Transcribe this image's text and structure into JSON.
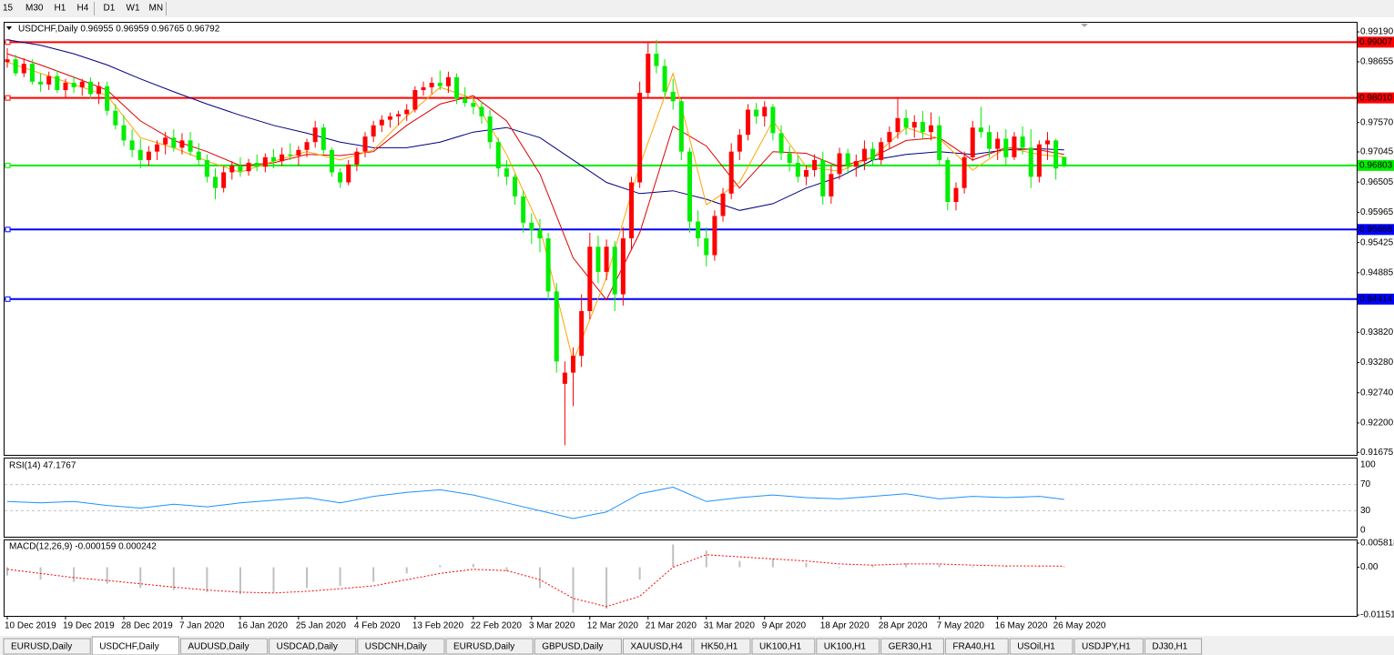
{
  "toolbar": [
    "15",
    "M30",
    "H1",
    "H4",
    "D1",
    "W1",
    "MN"
  ],
  "chart_data": {
    "type": "candlestick",
    "title": "USDCHF,Daily 0.96955 0.96959 0.96765 0.96792",
    "up_color": "#ff0000",
    "down_color": "#00ee00",
    "candles": [
      [
        0.9865,
        0.989,
        0.9855,
        0.987
      ],
      [
        0.987,
        0.9878,
        0.984,
        0.9845
      ],
      [
        0.9845,
        0.9872,
        0.9838,
        0.9862
      ],
      [
        0.9862,
        0.987,
        0.9825,
        0.983
      ],
      [
        0.983,
        0.9845,
        0.9812,
        0.9825
      ],
      [
        0.9825,
        0.9848,
        0.9815,
        0.984
      ],
      [
        0.984,
        0.985,
        0.981,
        0.9815
      ],
      [
        0.9815,
        0.9835,
        0.98,
        0.9828
      ],
      [
        0.9828,
        0.984,
        0.981,
        0.982
      ],
      [
        0.982,
        0.9835,
        0.9805,
        0.983
      ],
      [
        0.983,
        0.9838,
        0.98,
        0.9808
      ],
      [
        0.9808,
        0.983,
        0.979,
        0.9822
      ],
      [
        0.9822,
        0.983,
        0.977,
        0.9778
      ],
      [
        0.9778,
        0.979,
        0.9745,
        0.9752
      ],
      [
        0.9752,
        0.977,
        0.9715,
        0.9725
      ],
      [
        0.9725,
        0.9745,
        0.9695,
        0.9708
      ],
      [
        0.9708,
        0.9728,
        0.9675,
        0.969
      ],
      [
        0.969,
        0.9715,
        0.968,
        0.9705
      ],
      [
        0.9705,
        0.9725,
        0.969,
        0.9718
      ],
      [
        0.9718,
        0.974,
        0.97,
        0.973
      ],
      [
        0.973,
        0.9745,
        0.9705,
        0.9712
      ],
      [
        0.9712,
        0.9738,
        0.97,
        0.9725
      ],
      [
        0.9725,
        0.974,
        0.9698,
        0.9705
      ],
      [
        0.9705,
        0.972,
        0.968,
        0.969
      ],
      [
        0.969,
        0.97,
        0.965,
        0.966
      ],
      [
        0.966,
        0.9675,
        0.962,
        0.964
      ],
      [
        0.964,
        0.9678,
        0.9632,
        0.9668
      ],
      [
        0.9668,
        0.9688,
        0.9655,
        0.968
      ],
      [
        0.968,
        0.9695,
        0.966,
        0.967
      ],
      [
        0.967,
        0.9692,
        0.9662,
        0.9685
      ],
      [
        0.9685,
        0.97,
        0.967,
        0.9678
      ],
      [
        0.9678,
        0.9702,
        0.9668,
        0.9695
      ],
      [
        0.9695,
        0.971,
        0.9675,
        0.9688
      ],
      [
        0.9688,
        0.9712,
        0.968,
        0.97
      ],
      [
        0.97,
        0.972,
        0.969,
        0.9698
      ],
      [
        0.9698,
        0.9715,
        0.968,
        0.9708
      ],
      [
        0.9708,
        0.9728,
        0.9695,
        0.9722
      ],
      [
        0.9722,
        0.976,
        0.9712,
        0.9748
      ],
      [
        0.9748,
        0.9755,
        0.97,
        0.9708
      ],
      [
        0.9708,
        0.9712,
        0.966,
        0.9668
      ],
      [
        0.9668,
        0.9675,
        0.964,
        0.965
      ],
      [
        0.965,
        0.969,
        0.9645,
        0.9682
      ],
      [
        0.9682,
        0.9712,
        0.967,
        0.9705
      ],
      [
        0.9705,
        0.974,
        0.9695,
        0.9732
      ],
      [
        0.9732,
        0.976,
        0.9722,
        0.9752
      ],
      [
        0.9752,
        0.977,
        0.974,
        0.9762
      ],
      [
        0.9762,
        0.9775,
        0.9748,
        0.9768
      ],
      [
        0.9768,
        0.9778,
        0.9752,
        0.9772
      ],
      [
        0.9772,
        0.979,
        0.976,
        0.978
      ],
      [
        0.978,
        0.9822,
        0.9775,
        0.9815
      ],
      [
        0.9815,
        0.983,
        0.9805,
        0.982
      ],
      [
        0.982,
        0.9838,
        0.9808,
        0.9828
      ],
      [
        0.9828,
        0.985,
        0.9815,
        0.9822
      ],
      [
        0.9822,
        0.9848,
        0.981,
        0.9838
      ],
      [
        0.9838,
        0.9845,
        0.979,
        0.98
      ],
      [
        0.98,
        0.982,
        0.9785,
        0.9792
      ],
      [
        0.9792,
        0.98,
        0.9772,
        0.9785
      ],
      [
        0.9785,
        0.9795,
        0.9755,
        0.9768
      ],
      [
        0.9768,
        0.978,
        0.971,
        0.9722
      ],
      [
        0.9722,
        0.973,
        0.966,
        0.9675
      ],
      [
        0.9675,
        0.969,
        0.9645,
        0.966
      ],
      [
        0.966,
        0.9665,
        0.961,
        0.9625
      ],
      [
        0.9625,
        0.9635,
        0.956,
        0.9578
      ],
      [
        0.9578,
        0.9595,
        0.954,
        0.9565
      ],
      [
        0.9565,
        0.9585,
        0.9525,
        0.955
      ],
      [
        0.955,
        0.956,
        0.944,
        0.9455
      ],
      [
        0.9455,
        0.947,
        0.931,
        0.933
      ],
      [
        0.929,
        0.933,
        0.918,
        0.931
      ],
      [
        0.931,
        0.9355,
        0.925,
        0.934
      ],
      [
        0.934,
        0.945,
        0.932,
        0.942
      ],
      [
        0.942,
        0.956,
        0.9405,
        0.9535
      ],
      [
        0.9535,
        0.9555,
        0.947,
        0.949
      ],
      [
        0.949,
        0.9548,
        0.9475,
        0.9535
      ],
      [
        0.9535,
        0.9545,
        0.942,
        0.945
      ],
      [
        0.945,
        0.957,
        0.943,
        0.955
      ],
      [
        0.955,
        0.966,
        0.953,
        0.965
      ],
      [
        0.965,
        0.983,
        0.964,
        0.981
      ],
      [
        0.981,
        0.99,
        0.98,
        0.988
      ],
      [
        0.988,
        0.9905,
        0.9845,
        0.9858
      ],
      [
        0.9858,
        0.987,
        0.98,
        0.9812
      ],
      [
        0.9812,
        0.9835,
        0.978,
        0.9795
      ],
      [
        0.9795,
        0.98,
        0.969,
        0.9705
      ],
      [
        0.9705,
        0.9712,
        0.956,
        0.958
      ],
      [
        0.958,
        0.96,
        0.9535,
        0.955
      ],
      [
        0.955,
        0.957,
        0.95,
        0.952
      ],
      [
        0.952,
        0.96,
        0.951,
        0.959
      ],
      [
        0.959,
        0.964,
        0.958,
        0.963
      ],
      [
        0.963,
        0.972,
        0.962,
        0.9705
      ],
      [
        0.9705,
        0.9745,
        0.969,
        0.9735
      ],
      [
        0.9735,
        0.979,
        0.9725,
        0.978
      ],
      [
        0.978,
        0.9792,
        0.9755,
        0.9768
      ],
      [
        0.9768,
        0.9795,
        0.975,
        0.9785
      ],
      [
        0.9785,
        0.979,
        0.9725,
        0.9738
      ],
      [
        0.9738,
        0.9752,
        0.969,
        0.9702
      ],
      [
        0.9702,
        0.9715,
        0.967,
        0.9685
      ],
      [
        0.9685,
        0.9698,
        0.965,
        0.966
      ],
      [
        0.966,
        0.968,
        0.9645,
        0.9672
      ],
      [
        0.9672,
        0.97,
        0.966,
        0.969
      ],
      [
        0.969,
        0.9705,
        0.961,
        0.9625
      ],
      [
        0.9625,
        0.968,
        0.9612,
        0.9665
      ],
      [
        0.9665,
        0.9712,
        0.9655,
        0.9702
      ],
      [
        0.9702,
        0.971,
        0.9665,
        0.9678
      ],
      [
        0.9678,
        0.97,
        0.966,
        0.9688
      ],
      [
        0.9688,
        0.9725,
        0.9672,
        0.971
      ],
      [
        0.971,
        0.9722,
        0.968,
        0.969
      ],
      [
        0.969,
        0.973,
        0.9682,
        0.9722
      ],
      [
        0.9722,
        0.975,
        0.971,
        0.974
      ],
      [
        0.974,
        0.98,
        0.9728,
        0.9765
      ],
      [
        0.9765,
        0.978,
        0.9735,
        0.9748
      ],
      [
        0.9748,
        0.977,
        0.973,
        0.9758
      ],
      [
        0.9758,
        0.9778,
        0.9728,
        0.974
      ],
      [
        0.974,
        0.9775,
        0.9725,
        0.9752
      ],
      [
        0.9752,
        0.9768,
        0.968,
        0.969
      ],
      [
        0.969,
        0.9695,
        0.96,
        0.9615
      ],
      [
        0.9615,
        0.965,
        0.96,
        0.964
      ],
      [
        0.964,
        0.9705,
        0.963,
        0.9695
      ],
      [
        0.9695,
        0.976,
        0.9688,
        0.9748
      ],
      [
        0.9748,
        0.9785,
        0.973,
        0.974
      ],
      [
        0.974,
        0.9752,
        0.9695,
        0.971
      ],
      [
        0.971,
        0.974,
        0.969,
        0.9728
      ],
      [
        0.9728,
        0.9745,
        0.968,
        0.9695
      ],
      [
        0.9695,
        0.974,
        0.969,
        0.9732
      ],
      [
        0.9732,
        0.975,
        0.97,
        0.9712
      ],
      [
        0.9712,
        0.9745,
        0.964,
        0.966
      ],
      [
        0.966,
        0.9725,
        0.965,
        0.9718
      ],
      [
        0.9718,
        0.974,
        0.969,
        0.9725
      ],
      [
        0.9725,
        0.9728,
        0.9655,
        0.9675
      ],
      [
        0.96955,
        0.96959,
        0.96765,
        0.96792
      ]
    ],
    "ylim": [
      0.9163,
      0.9937
    ],
    "yticks": [
      {
        "value": 0.9919,
        "label": "0.99190"
      },
      {
        "value": 0.98655,
        "label": "0.98655"
      },
      {
        "value": 0.9757,
        "label": "0.97570"
      },
      {
        "value": 0.97045,
        "label": "0.97045"
      },
      {
        "value": 0.96505,
        "label": "0.96505"
      },
      {
        "value": 0.95965,
        "label": "0.95965"
      },
      {
        "value": 0.95425,
        "label": "0.95425"
      },
      {
        "value": 0.94885,
        "label": "0.94885"
      },
      {
        "value": 0.9382,
        "label": "0.93820"
      },
      {
        "value": 0.9328,
        "label": "0.93280"
      },
      {
        "value": 0.9274,
        "label": "0.92740"
      },
      {
        "value": 0.922,
        "label": "0.92200"
      },
      {
        "value": 0.91675,
        "label": "0.91675"
      }
    ],
    "dates": [
      "10 Dec 2019",
      "19 Dec 2019",
      "28 Dec 2019",
      "7 Jan 2020",
      "16 Jan 2020",
      "25 Jan 2020",
      "4 Feb 2020",
      "13 Feb 2020",
      "22 Feb 2020",
      "3 Mar 2020",
      "12 Mar 2020",
      "21 Mar 2020",
      "31 Mar 2020",
      "9 Apr 2020",
      "18 Apr 2020",
      "28 Apr 2020",
      "7 May 2020",
      "16 May 2020",
      "26 May 2020"
    ],
    "levels": [
      {
        "value": 0.99007,
        "label": "0.99007",
        "color": "#ff0000"
      },
      {
        "value": 0.9801,
        "label": "0.98010",
        "color": "#ff0000"
      },
      {
        "value": 0.96803,
        "label": "0.96803",
        "color": "#00ee00"
      },
      {
        "value": 0.95658,
        "label": "0.95658",
        "color": "#0000ff"
      },
      {
        "value": 0.94414,
        "label": "0.94414",
        "color": "#0000ff"
      }
    ],
    "moving_averages": [
      {
        "color": "#000080",
        "values": [
          0.9905,
          0.9895,
          0.988,
          0.986,
          0.9835,
          0.9812,
          0.979,
          0.977,
          0.9752,
          0.9738,
          0.9722,
          0.9712,
          0.9712,
          0.9722,
          0.974,
          0.9748,
          0.973,
          0.969,
          0.965,
          0.963,
          0.9635,
          0.962,
          0.96,
          0.9612,
          0.964,
          0.966,
          0.969,
          0.97,
          0.9705,
          0.97,
          0.9708,
          0.971,
          0.9708
        ]
      },
      {
        "color": "#e00000",
        "values": [
          0.988,
          0.986,
          0.9838,
          0.9815,
          0.976,
          0.9725,
          0.9705,
          0.968,
          0.9685,
          0.97,
          0.9698,
          0.9705,
          0.9752,
          0.979,
          0.9805,
          0.976,
          0.9665,
          0.9515,
          0.944,
          0.956,
          0.975,
          0.9715,
          0.964,
          0.9705,
          0.9702,
          0.9678,
          0.9695,
          0.9725,
          0.973,
          0.969,
          0.9712,
          0.9708,
          0.97
        ]
      },
      {
        "color": "#ffa500",
        "values": [
          0.9865,
          0.9845,
          0.9825,
          0.9805,
          0.973,
          0.9712,
          0.9688,
          0.9668,
          0.9688,
          0.9705,
          0.969,
          0.9708,
          0.9768,
          0.982,
          0.98,
          0.97,
          0.957,
          0.933,
          0.948,
          0.968,
          0.9845,
          0.961,
          0.965,
          0.976,
          0.9678,
          0.967,
          0.9695,
          0.9748,
          0.9728,
          0.9672,
          0.9712,
          0.97,
          0.9695
        ]
      }
    ],
    "rsi": {
      "label": "RSI(14) 47.1767",
      "color": "#1e90ff",
      "ylim": [
        0,
        100
      ],
      "yticks": [
        100,
        70,
        30,
        0
      ],
      "values": [
        44,
        42,
        44,
        38,
        34,
        40,
        36,
        42,
        46,
        50,
        42,
        52,
        58,
        62,
        54,
        42,
        30,
        18,
        28,
        56,
        66,
        44,
        50,
        54,
        50,
        48,
        52,
        56,
        48,
        52,
        50,
        52,
        47.18
      ]
    },
    "macd": {
      "label": "MACD(12,26,9) -0.000159 0.000242",
      "color": "#c0c0c0",
      "signal_color": "#ff0000",
      "ylim": [
        -0.011515,
        0.005818
      ],
      "yticks": [
        {
          "value": 0.005818,
          "label": "0.005818"
        },
        {
          "value": 0,
          "label": "0.00"
        },
        {
          "value": -0.011515,
          "label": "-0.011515"
        }
      ],
      "values": [
        -0.002,
        -0.003,
        -0.0035,
        -0.004,
        -0.005,
        -0.0055,
        -0.006,
        -0.0065,
        -0.006,
        -0.005,
        -0.0045,
        -0.0035,
        -0.0015,
        0.0005,
        0.0008,
        -0.001,
        -0.005,
        -0.011,
        -0.01,
        -0.003,
        0.0055,
        0.004,
        0.0015,
        0.002,
        0.001,
        -0.0002,
        0.0005,
        0.001,
        0.0008,
        0.0002,
        0.0002,
        0.0003,
        -0.000159
      ],
      "signal": [
        -0.0005,
        -0.0015,
        -0.0025,
        -0.0032,
        -0.004,
        -0.0048,
        -0.0055,
        -0.006,
        -0.0062,
        -0.0058,
        -0.0052,
        -0.0045,
        -0.003,
        -0.0015,
        -0.0005,
        -0.0008,
        -0.003,
        -0.0075,
        -0.0095,
        -0.007,
        0,
        0.003,
        0.0025,
        0.002,
        0.0015,
        0.0008,
        0.0005,
        0.0008,
        0.0008,
        0.0005,
        0.0003,
        0.0003,
        0.000242
      ]
    }
  },
  "tabs": [
    "EURUSD,Daily",
    "USDCHF,Daily",
    "AUDUSD,Daily",
    "USDCAD,Daily",
    "USDCNH,Daily",
    "EURUSD,Daily",
    "GBPUSD,Daily",
    "XAUUSD,H4",
    "HK50,H1",
    "UK100,H1",
    "UK100,H1",
    "GER30,H1",
    "FRA40,H1",
    "USOil,H1",
    "USDJPY,H1",
    "DJ30,H1"
  ],
  "active_tab": 1
}
